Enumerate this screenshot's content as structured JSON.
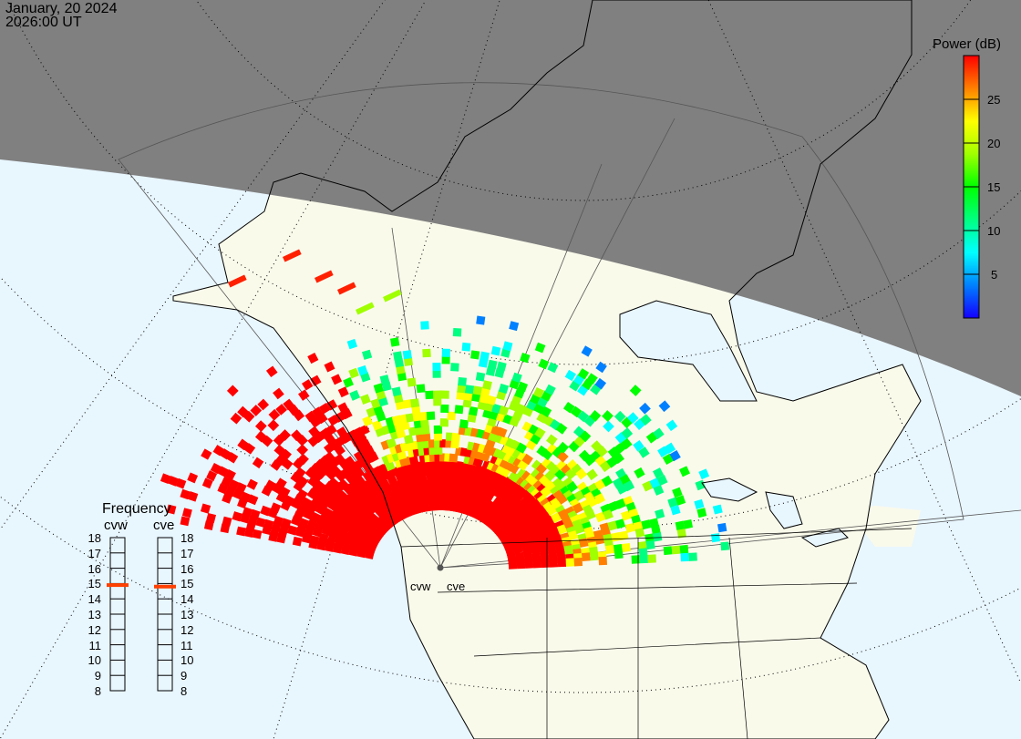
{
  "header": {
    "date": "January, 20 2024",
    "time": "2026:00 UT"
  },
  "colorbar": {
    "title": "Power (dB)",
    "ticks": [
      "25",
      "20",
      "15",
      "10",
      "5"
    ],
    "tick_values": [
      25,
      20,
      15,
      10,
      5
    ],
    "range": [
      0,
      30
    ],
    "colors": [
      "#1400ff",
      "#0080ff",
      "#00ffff",
      "#00ff80",
      "#00ff00",
      "#a0ff00",
      "#ffff00",
      "#ff8000",
      "#ff0000"
    ]
  },
  "frequency": {
    "title": "Frequency",
    "radars": [
      {
        "name": "cvw",
        "value_mhz": 14.9
      },
      {
        "name": "cve",
        "value_mhz": 14.8
      }
    ],
    "scale": [
      "18",
      "17",
      "16",
      "15",
      "14",
      "13",
      "12",
      "11",
      "10",
      "9",
      "8"
    ],
    "marker_color": "#ff4000"
  },
  "radar_sites": [
    {
      "name": "cvw"
    },
    {
      "name": "cve"
    }
  ],
  "colors": {
    "ocean": "#e8f6fe",
    "land": "#fafaeb",
    "night": "#808080"
  }
}
